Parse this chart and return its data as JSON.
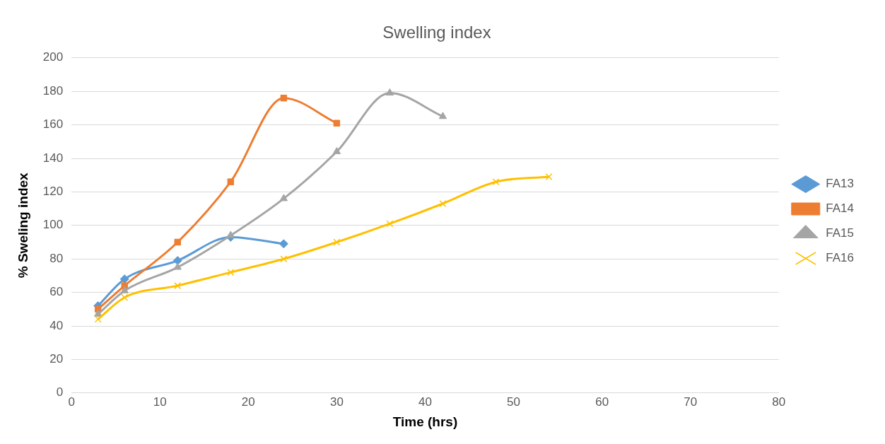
{
  "chart_data": {
    "type": "line",
    "title": "Swelling index",
    "xlabel": "Time (hrs)",
    "ylabel": "% Sweling index",
    "xlim": [
      0,
      80
    ],
    "xticks": [
      0,
      10,
      20,
      30,
      40,
      50,
      60,
      70,
      80
    ],
    "ylim": [
      0,
      200
    ],
    "yticks": [
      0,
      20,
      40,
      60,
      80,
      100,
      120,
      140,
      160,
      180,
      200
    ],
    "grid": "y",
    "legend": "right",
    "series": [
      {
        "name": "FA13",
        "color": "#5b9bd5",
        "marker": "diamond",
        "x": [
          3,
          6,
          12,
          18,
          24
        ],
        "values": [
          52,
          68,
          79,
          93,
          89
        ]
      },
      {
        "name": "FA14",
        "color": "#ed7d31",
        "marker": "square",
        "x": [
          3,
          6,
          12,
          18,
          24,
          30
        ],
        "values": [
          50,
          64,
          90,
          126,
          176,
          161
        ]
      },
      {
        "name": "FA15",
        "color": "#a5a5a5",
        "marker": "triangle",
        "x": [
          3,
          6,
          12,
          18,
          24,
          30,
          36,
          42
        ],
        "values": [
          47,
          61,
          75,
          94,
          116,
          144,
          179,
          165
        ]
      },
      {
        "name": "FA16",
        "color": "#ffc000",
        "marker": "cross",
        "x": [
          3,
          6,
          12,
          18,
          24,
          30,
          36,
          42,
          48,
          54
        ],
        "values": [
          44,
          57,
          64,
          72,
          80,
          90,
          101,
          113,
          126,
          129
        ]
      }
    ]
  }
}
